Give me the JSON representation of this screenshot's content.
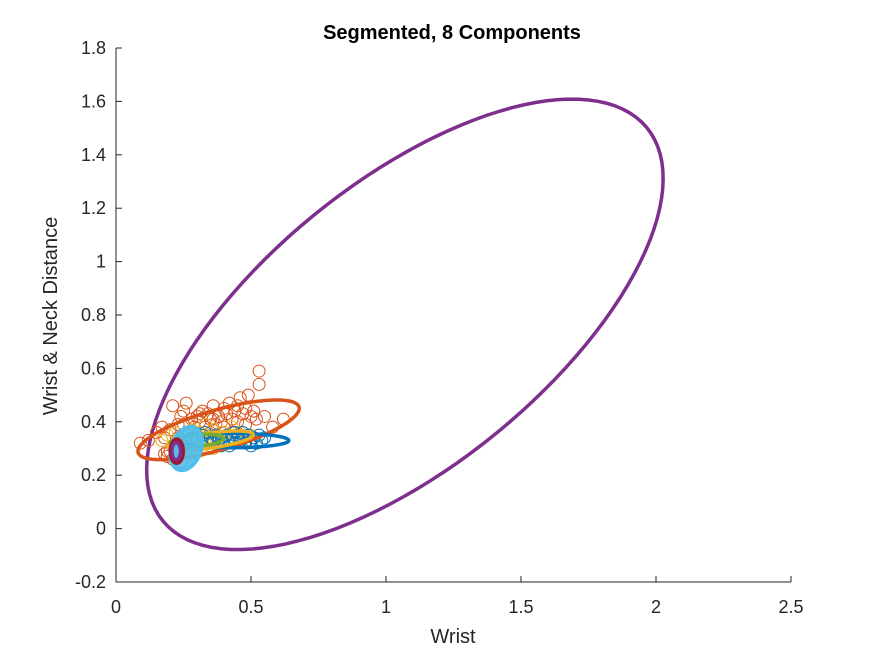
{
  "chart_data": {
    "type": "scatter",
    "title": "Segmented, 8 Components",
    "xlabel": "Wrist",
    "ylabel": "Wrist & Neck Distance",
    "xlim": [
      0,
      2.5
    ],
    "ylim": [
      -0.2,
      1.8
    ],
    "xticks": [
      "0",
      "0.5",
      "1",
      "1.5",
      "2",
      "2.5"
    ],
    "yticks": [
      "-0.2",
      "0",
      "0.2",
      "0.4",
      "0.6",
      "0.8",
      "1",
      "1.2",
      "1.4",
      "1.6",
      "1.8"
    ],
    "grid": false,
    "legend": "none",
    "colors": {
      "blue": "#0072BD",
      "orange": "#D95319",
      "yellow": "#EDB120",
      "purple": "#7E2F8E",
      "green": "#77AC30",
      "lightblue": "#4DBEEE",
      "red": "#A2142F",
      "axis": "#262626"
    },
    "series": [
      {
        "color": "#D95319",
        "points": [
          [
            0.09,
            0.32
          ],
          [
            0.12,
            0.33
          ],
          [
            0.15,
            0.36
          ],
          [
            0.17,
            0.38
          ],
          [
            0.18,
            0.34
          ],
          [
            0.19,
            0.29
          ],
          [
            0.2,
            0.37
          ],
          [
            0.21,
            0.46
          ],
          [
            0.22,
            0.3
          ],
          [
            0.23,
            0.39
          ],
          [
            0.24,
            0.42
          ],
          [
            0.25,
            0.44
          ],
          [
            0.26,
            0.47
          ],
          [
            0.27,
            0.36
          ],
          [
            0.28,
            0.41
          ],
          [
            0.29,
            0.38
          ],
          [
            0.3,
            0.42
          ],
          [
            0.31,
            0.4
          ],
          [
            0.32,
            0.44
          ],
          [
            0.33,
            0.38
          ],
          [
            0.34,
            0.43
          ],
          [
            0.35,
            0.41
          ],
          [
            0.36,
            0.46
          ],
          [
            0.37,
            0.39
          ],
          [
            0.38,
            0.42
          ],
          [
            0.39,
            0.4
          ],
          [
            0.4,
            0.45
          ],
          [
            0.41,
            0.43
          ],
          [
            0.42,
            0.47
          ],
          [
            0.43,
            0.41
          ],
          [
            0.44,
            0.44
          ],
          [
            0.45,
            0.46
          ],
          [
            0.46,
            0.49
          ],
          [
            0.47,
            0.43
          ],
          [
            0.48,
            0.45
          ],
          [
            0.49,
            0.5
          ],
          [
            0.5,
            0.42
          ],
          [
            0.51,
            0.44
          ],
          [
            0.52,
            0.41
          ],
          [
            0.53,
            0.54
          ],
          [
            0.53,
            0.59
          ],
          [
            0.55,
            0.42
          ],
          [
            0.58,
            0.38
          ],
          [
            0.62,
            0.41
          ],
          [
            0.18,
            0.28
          ],
          [
            0.19,
            0.27
          ],
          [
            0.2,
            0.29
          ],
          [
            0.21,
            0.26
          ],
          [
            0.22,
            0.28
          ],
          [
            0.24,
            0.25
          ],
          [
            0.23,
            0.34
          ],
          [
            0.26,
            0.32
          ],
          [
            0.3,
            0.35
          ],
          [
            0.35,
            0.36
          ],
          [
            0.4,
            0.38
          ],
          [
            0.45,
            0.4
          ],
          [
            0.36,
            0.41
          ],
          [
            0.43,
            0.36
          ],
          [
            0.25,
            0.39
          ],
          [
            0.31,
            0.43
          ],
          [
            0.27,
            0.29
          ],
          [
            0.48,
            0.39
          ]
        ]
      },
      {
        "color": "#EDB120",
        "points": [
          [
            0.17,
            0.33
          ],
          [
            0.19,
            0.35
          ],
          [
            0.21,
            0.31
          ],
          [
            0.22,
            0.36
          ],
          [
            0.24,
            0.33
          ],
          [
            0.25,
            0.3
          ],
          [
            0.26,
            0.35
          ],
          [
            0.27,
            0.32
          ],
          [
            0.28,
            0.37
          ],
          [
            0.29,
            0.31
          ],
          [
            0.3,
            0.34
          ],
          [
            0.31,
            0.36
          ],
          [
            0.32,
            0.32
          ],
          [
            0.33,
            0.35
          ],
          [
            0.34,
            0.3
          ],
          [
            0.35,
            0.33
          ],
          [
            0.36,
            0.37
          ],
          [
            0.37,
            0.34
          ],
          [
            0.38,
            0.31
          ],
          [
            0.39,
            0.36
          ],
          [
            0.4,
            0.33
          ],
          [
            0.41,
            0.35
          ],
          [
            0.42,
            0.31
          ],
          [
            0.44,
            0.34
          ],
          [
            0.46,
            0.36
          ],
          [
            0.48,
            0.33
          ],
          [
            0.5,
            0.35
          ],
          [
            0.52,
            0.32
          ],
          [
            0.28,
            0.28
          ],
          [
            0.31,
            0.29
          ],
          [
            0.26,
            0.27
          ],
          [
            0.36,
            0.3
          ],
          [
            0.33,
            0.39
          ],
          [
            0.43,
            0.38
          ]
        ]
      },
      {
        "color": "#0072BD",
        "points": [
          [
            0.28,
            0.34
          ],
          [
            0.3,
            0.33
          ],
          [
            0.32,
            0.35
          ],
          [
            0.34,
            0.33
          ],
          [
            0.35,
            0.34
          ],
          [
            0.36,
            0.32
          ],
          [
            0.37,
            0.35
          ],
          [
            0.38,
            0.33
          ],
          [
            0.39,
            0.34
          ],
          [
            0.4,
            0.32
          ],
          [
            0.41,
            0.35
          ],
          [
            0.42,
            0.33
          ],
          [
            0.43,
            0.34
          ],
          [
            0.44,
            0.32
          ],
          [
            0.45,
            0.35
          ],
          [
            0.46,
            0.33
          ],
          [
            0.47,
            0.34
          ],
          [
            0.48,
            0.32
          ],
          [
            0.49,
            0.35
          ],
          [
            0.5,
            0.33
          ],
          [
            0.51,
            0.34
          ],
          [
            0.52,
            0.32
          ],
          [
            0.53,
            0.35
          ],
          [
            0.54,
            0.33
          ],
          [
            0.55,
            0.34
          ],
          [
            0.33,
            0.36
          ],
          [
            0.39,
            0.31
          ],
          [
            0.44,
            0.36
          ],
          [
            0.5,
            0.31
          ],
          [
            0.36,
            0.33
          ],
          [
            0.47,
            0.36
          ],
          [
            0.42,
            0.31
          ]
        ]
      }
    ],
    "ellipses": [
      {
        "color": "#7E2F8E",
        "cx": 1.07,
        "cy": 0.765,
        "a": 1.16,
        "b": 0.53,
        "angle_deg": 39.5
      },
      {
        "color": "#D95319",
        "cx": 0.38,
        "cy": 0.37,
        "a": 0.31,
        "b": 0.075,
        "angle_deg": 16
      },
      {
        "color": "#0072BD",
        "cx": 0.43,
        "cy": 0.33,
        "a": 0.21,
        "b": 0.027,
        "angle_deg": 0
      },
      {
        "color": "#EDB120",
        "cx": 0.35,
        "cy": 0.33,
        "a": 0.16,
        "b": 0.028,
        "angle_deg": 8
      },
      {
        "color": "#77AC30",
        "cx": 0.3,
        "cy": 0.33,
        "a": 0.1,
        "b": 0.022,
        "angle_deg": 5
      },
      {
        "color": "#4DBEEE",
        "cx": 0.26,
        "cy": 0.3,
        "a": 0.085,
        "b": 0.055,
        "angle_deg": 70
      },
      {
        "color": "#A2142F",
        "cx": 0.225,
        "cy": 0.29,
        "a": 0.045,
        "b": 0.024,
        "angle_deg": 90
      },
      {
        "color": "#7E2F8E",
        "cx": 0.223,
        "cy": 0.29,
        "a": 0.032,
        "b": 0.016,
        "angle_deg": 90
      }
    ]
  }
}
